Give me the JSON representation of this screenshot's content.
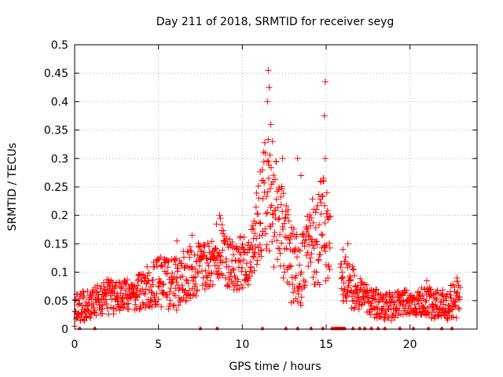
{
  "chart_data": {
    "type": "scatter",
    "title": "Day 211 of 2018, SRMTID for receiver seyg",
    "xlabel": "GPS time / hours",
    "ylabel": "SRMTID / TECUs",
    "xlim": [
      0,
      24
    ],
    "ylim": [
      0,
      0.5
    ],
    "xticks": [
      0,
      5,
      10,
      15,
      20
    ],
    "xtick_labels": [
      "0",
      "5",
      "10",
      "15",
      "20"
    ],
    "yticks": [
      0,
      0.05,
      0.1,
      0.15,
      0.2,
      0.25,
      0.3,
      0.35,
      0.4,
      0.45,
      0.5
    ],
    "ytick_labels": [
      "0",
      "0.05",
      "0.1",
      "0.15",
      "0.2",
      "0.25",
      "0.3",
      "0.35",
      "0.4",
      "0.45",
      "0.5"
    ],
    "grid": true,
    "marker": "plus",
    "color": "#ff0000",
    "trend_envelope": [
      {
        "x": 0.0,
        "low": 0.005,
        "high": 0.065
      },
      {
        "x": 1.0,
        "low": 0.02,
        "high": 0.07
      },
      {
        "x": 2.0,
        "low": 0.025,
        "high": 0.09
      },
      {
        "x": 3.0,
        "low": 0.03,
        "high": 0.085
      },
      {
        "x": 4.0,
        "low": 0.035,
        "high": 0.1
      },
      {
        "x": 5.0,
        "low": 0.04,
        "high": 0.13
      },
      {
        "x": 6.0,
        "low": 0.03,
        "high": 0.13
      },
      {
        "x": 7.0,
        "low": 0.05,
        "high": 0.15
      },
      {
        "x": 8.0,
        "low": 0.06,
        "high": 0.16
      },
      {
        "x": 8.7,
        "low": 0.09,
        "high": 0.2
      },
      {
        "x": 9.5,
        "low": 0.06,
        "high": 0.16
      },
      {
        "x": 10.5,
        "low": 0.08,
        "high": 0.17
      },
      {
        "x": 11.0,
        "low": 0.12,
        "high": 0.3
      },
      {
        "x": 11.5,
        "low": 0.14,
        "high": 0.35
      },
      {
        "x": 12.0,
        "low": 0.08,
        "high": 0.3
      },
      {
        "x": 12.5,
        "low": 0.08,
        "high": 0.24
      },
      {
        "x": 13.0,
        "low": 0.04,
        "high": 0.18
      },
      {
        "x": 13.5,
        "low": 0.04,
        "high": 0.16
      },
      {
        "x": 14.0,
        "low": 0.1,
        "high": 0.22
      },
      {
        "x": 14.5,
        "low": 0.06,
        "high": 0.25
      },
      {
        "x": 15.0,
        "low": 0.08,
        "high": 0.28
      },
      {
        "x": 15.5,
        "low": 0.06,
        "high": 0.14
      },
      {
        "x": 16.0,
        "low": 0.04,
        "high": 0.14
      },
      {
        "x": 17.0,
        "low": 0.03,
        "high": 0.09
      },
      {
        "x": 18.0,
        "low": 0.015,
        "high": 0.07
      },
      {
        "x": 19.0,
        "low": 0.015,
        "high": 0.065
      },
      {
        "x": 20.0,
        "low": 0.025,
        "high": 0.07
      },
      {
        "x": 21.0,
        "low": 0.02,
        "high": 0.075
      },
      {
        "x": 22.0,
        "low": 0.015,
        "high": 0.07
      },
      {
        "x": 23.0,
        "low": 0.02,
        "high": 0.09
      }
    ],
    "outliers": [
      {
        "x": 11.55,
        "y": 0.455
      },
      {
        "x": 11.6,
        "y": 0.425
      },
      {
        "x": 11.5,
        "y": 0.4
      },
      {
        "x": 11.7,
        "y": 0.36
      },
      {
        "x": 11.8,
        "y": 0.33
      },
      {
        "x": 12.4,
        "y": 0.3
      },
      {
        "x": 14.95,
        "y": 0.435
      },
      {
        "x": 14.9,
        "y": 0.375
      },
      {
        "x": 14.95,
        "y": 0.3
      },
      {
        "x": 13.3,
        "y": 0.3
      },
      {
        "x": 13.5,
        "y": 0.27
      },
      {
        "x": 14.7,
        "y": 0.26
      },
      {
        "x": 16.0,
        "y": 0.14
      },
      {
        "x": 16.3,
        "y": 0.15
      },
      {
        "x": 21.0,
        "y": 0.085
      },
      {
        "x": 22.8,
        "y": 0.09
      },
      {
        "x": 6.1,
        "y": 0.155
      },
      {
        "x": 7.0,
        "y": 0.165
      },
      {
        "x": 8.65,
        "y": 0.2
      },
      {
        "x": 10.7,
        "y": 0.19
      }
    ],
    "zero_value_x": [
      0.3,
      1.2,
      7.5,
      8.5,
      11.2,
      12.6,
      13.3,
      14.1,
      14.8,
      15.35,
      15.5,
      15.6,
      15.7,
      15.8,
      15.9,
      16.0,
      16.1,
      16.6,
      17.0,
      17.3,
      17.7,
      18.1,
      18.5,
      19.4,
      20.2,
      21.1,
      21.9,
      22.5
    ]
  }
}
